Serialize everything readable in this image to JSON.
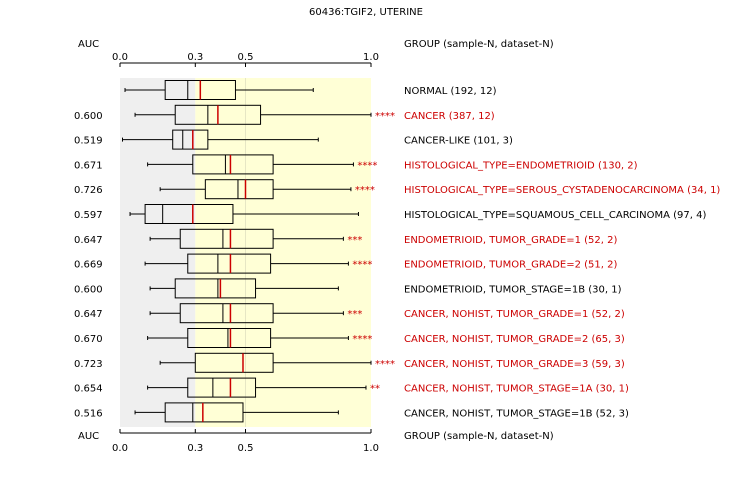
{
  "chart_data": {
    "type": "boxplot",
    "title": "60436:TGIF2, UTERINE",
    "auc_header": "AUC",
    "group_header": "GROUP (sample-N, dataset-N)",
    "xlim": [
      0.0,
      1.0
    ],
    "ticks": [
      {
        "value": 0.0,
        "label": "0.0"
      },
      {
        "value": 0.3,
        "label": "0.3"
      },
      {
        "value": 0.5,
        "label": "0.5"
      },
      {
        "value": 1.0,
        "label": "1.0"
      }
    ],
    "shading": [
      {
        "from": 0.0,
        "to": 0.3,
        "color": "#efefef"
      },
      {
        "from": 0.3,
        "to": 1.0,
        "color": "#ffffd6"
      }
    ],
    "colors": {
      "significant": "#cc0000",
      "normal": "#000000",
      "median": "#cc0000",
      "reference": "#888888"
    },
    "groups": [
      {
        "label": "NORMAL (192, 12)",
        "auc": "",
        "stars": "",
        "significant": false,
        "min": 0.02,
        "q1": 0.18,
        "median": 0.32,
        "q3": 0.46,
        "max": 0.77,
        "ref": 0.27
      },
      {
        "label": "CANCER (387, 12)",
        "auc": "0.600",
        "stars": "****",
        "significant": true,
        "min": 0.06,
        "q1": 0.22,
        "median": 0.39,
        "q3": 0.56,
        "max": 1.0,
        "ref": 0.35
      },
      {
        "label": "CANCER-LIKE (101, 3)",
        "auc": "0.519",
        "stars": "",
        "significant": false,
        "min": 0.01,
        "q1": 0.21,
        "median": 0.29,
        "q3": 0.35,
        "max": 0.79,
        "ref": 0.25
      },
      {
        "label": "HISTOLOGICAL_TYPE=ENDOMETRIOID (130, 2)",
        "auc": "0.671",
        "stars": "****",
        "significant": true,
        "min": 0.11,
        "q1": 0.29,
        "median": 0.44,
        "q3": 0.61,
        "max": 0.93,
        "ref": 0.42
      },
      {
        "label": "HISTOLOGICAL_TYPE=SEROUS_CYSTADENOCARCINOMA (34, 1)",
        "auc": "0.726",
        "stars": "****",
        "significant": true,
        "min": 0.16,
        "q1": 0.34,
        "median": 0.5,
        "q3": 0.61,
        "max": 0.92,
        "ref": 0.47
      },
      {
        "label": "HISTOLOGICAL_TYPE=SQUAMOUS_CELL_CARCINOMA (97, 4)",
        "auc": "0.597",
        "stars": "",
        "significant": false,
        "min": 0.04,
        "q1": 0.1,
        "median": 0.29,
        "q3": 0.45,
        "max": 0.95,
        "ref": 0.17
      },
      {
        "label": "ENDOMETRIOID, TUMOR_GRADE=1 (52, 2)",
        "auc": "0.647",
        "stars": "***",
        "significant": true,
        "min": 0.12,
        "q1": 0.24,
        "median": 0.44,
        "q3": 0.61,
        "max": 0.89,
        "ref": 0.41
      },
      {
        "label": "ENDOMETRIOID, TUMOR_GRADE=2 (51, 2)",
        "auc": "0.669",
        "stars": "****",
        "significant": true,
        "min": 0.1,
        "q1": 0.27,
        "median": 0.44,
        "q3": 0.6,
        "max": 0.91,
        "ref": 0.39
      },
      {
        "label": "ENDOMETRIOID, TUMOR_STAGE=1B (30, 1)",
        "auc": "0.600",
        "stars": "",
        "significant": false,
        "min": 0.12,
        "q1": 0.22,
        "median": 0.4,
        "q3": 0.54,
        "max": 0.87,
        "ref": 0.39
      },
      {
        "label": "CANCER, NOHIST, TUMOR_GRADE=1 (52, 2)",
        "auc": "0.647",
        "stars": "***",
        "significant": true,
        "min": 0.12,
        "q1": 0.24,
        "median": 0.44,
        "q3": 0.61,
        "max": 0.89,
        "ref": 0.41
      },
      {
        "label": "CANCER, NOHIST, TUMOR_GRADE=2 (65, 3)",
        "auc": "0.670",
        "stars": "****",
        "significant": true,
        "min": 0.11,
        "q1": 0.27,
        "median": 0.44,
        "q3": 0.6,
        "max": 0.91,
        "ref": 0.43
      },
      {
        "label": "CANCER, NOHIST, TUMOR_GRADE=3 (59, 3)",
        "auc": "0.723",
        "stars": "****",
        "significant": true,
        "min": 0.16,
        "q1": 0.3,
        "median": 0.49,
        "q3": 0.61,
        "max": 1.0,
        "ref": 0.49
      },
      {
        "label": "CANCER, NOHIST, TUMOR_STAGE=1A (30, 1)",
        "auc": "0.654",
        "stars": "**",
        "significant": true,
        "min": 0.11,
        "q1": 0.27,
        "median": 0.44,
        "q3": 0.54,
        "max": 0.98,
        "ref": 0.37
      },
      {
        "label": "CANCER, NOHIST, TUMOR_STAGE=1B (52, 3)",
        "auc": "0.516",
        "stars": "",
        "significant": false,
        "min": 0.06,
        "q1": 0.18,
        "median": 0.33,
        "q3": 0.49,
        "max": 0.87,
        "ref": 0.29
      }
    ]
  }
}
